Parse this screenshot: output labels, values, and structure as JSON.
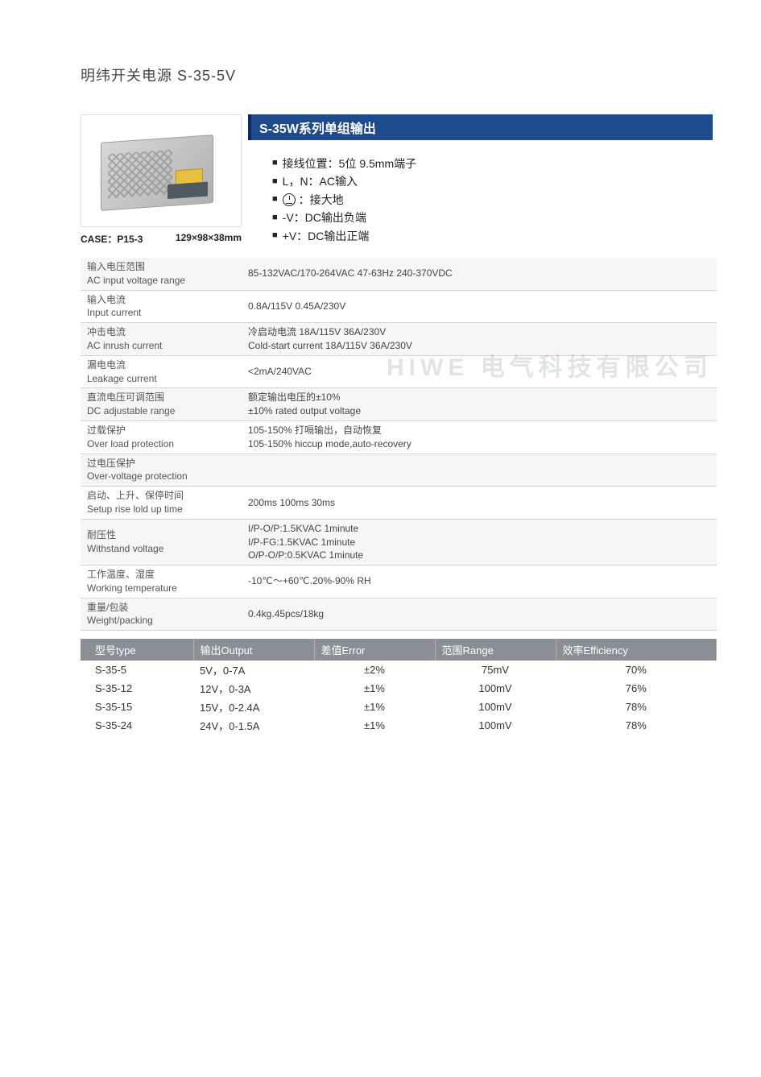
{
  "page_title": "明纬开关电源 S-35-5V",
  "case_label": "CASE：P15-3",
  "case_dims": "129×98×38mm",
  "header_bar": "S-35W系列单组输出",
  "colors": {
    "header_blue": "#1c4a8c",
    "model_header_grey": "#8a8f95"
  },
  "wiring_items": [
    {
      "text": "接线位置：5位 9.5mm端子",
      "icon": null
    },
    {
      "text": "L，N：AC输入",
      "icon": null
    },
    {
      "text": "：接大地",
      "icon": "ground"
    },
    {
      "text": "-V：DC输出负端",
      "icon": null
    },
    {
      "text": "+V：DC输出正端",
      "icon": null
    }
  ],
  "specs": [
    {
      "label_cn": "输入电压范围",
      "label_en": "AC input voltage range",
      "value": "85-132VAC/170-264VAC 47-63Hz 240-370VDC"
    },
    {
      "label_cn": "输入电流",
      "label_en": "Input current",
      "value": "0.8A/115V 0.45A/230V"
    },
    {
      "label_cn": "冲击电流",
      "label_en": "AC inrush current",
      "value": "冷启动电流 18A/115V 36A/230V\nCold-start current 18A/115V 36A/230V"
    },
    {
      "label_cn": "漏电电流",
      "label_en": "Leakage current",
      "value": "<2mA/240VAC"
    },
    {
      "label_cn": "直流电压可调范围",
      "label_en": "DC adjustable range",
      "value": "额定输出电压的±10%\n±10% rated output voltage"
    },
    {
      "label_cn": "过载保护",
      "label_en": "Over load protection",
      "value": "105-150% 打嗝输出，自动恢复\n105-150% hiccup mode,auto-recovery"
    },
    {
      "label_cn": "过电压保护",
      "label_en": "Over-voltage protection",
      "value": ""
    },
    {
      "label_cn": "启动、上升、保停时间",
      "label_en": "Setup rise lold up time",
      "value": "200ms 100ms 30ms"
    },
    {
      "label_cn": "耐压性",
      "label_en": "Withstand voltage",
      "value": "I/P-O/P:1.5KVAC 1minute\nI/P-FG:1.5KVAC 1minute\nO/P-O/P:0.5KVAC 1minute"
    },
    {
      "label_cn": "工作温度、湿度",
      "label_en": "Working temperature",
      "value": "-10℃～+60℃.20%-90% RH"
    },
    {
      "label_cn": "重量/包装",
      "label_en": "Weight/packing",
      "value": "0.4kg.45pcs/18kg"
    }
  ],
  "watermark": "HIWE 电气科技有限公司",
  "models_header": [
    "型号type",
    "输出Output",
    "差值Error",
    "范围Range",
    "效率Efficiency"
  ],
  "models": [
    [
      "S-35-5",
      "5V，0-7A",
      "±2%",
      "75mV",
      "70%"
    ],
    [
      "S-35-12",
      "12V，0-3A",
      "±1%",
      "100mV",
      "76%"
    ],
    [
      "S-35-15",
      "15V，0-2.4A",
      "±1%",
      "100mV",
      "78%"
    ],
    [
      "S-35-24",
      "24V，0-1.5A",
      "±1%",
      "100mV",
      "78%"
    ]
  ]
}
